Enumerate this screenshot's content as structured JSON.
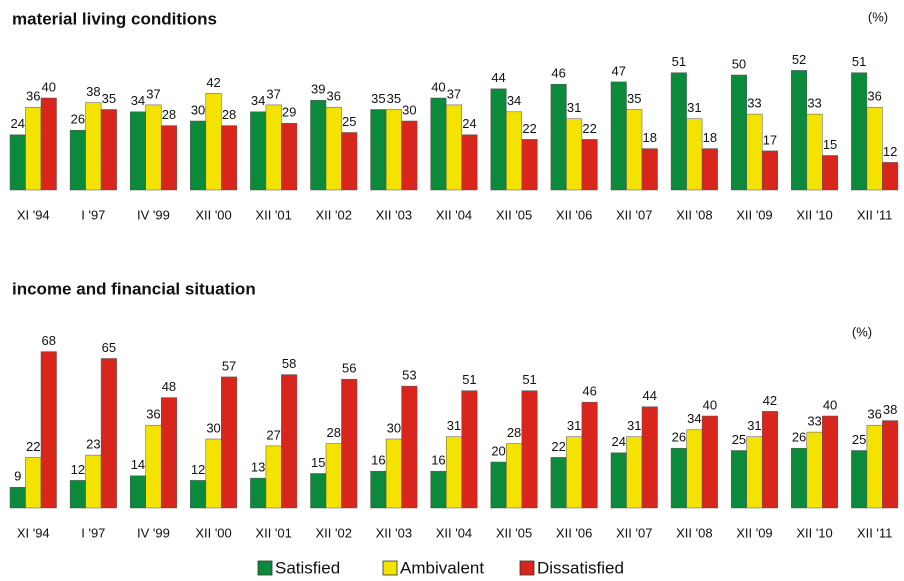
{
  "chart_data": [
    {
      "type": "bar",
      "title": "material living conditions",
      "unit": "(%)",
      "categories": [
        "XI '94",
        "I '97",
        "IV '99",
        "XII '00",
        "XII '01",
        "XII '02",
        "XII '03",
        "XII '04",
        "XII '05",
        "XII '06",
        "XII '07",
        "XII '08",
        "XII '09",
        "XII '10",
        "XII '11"
      ],
      "series": [
        {
          "name": "Satisfied",
          "color": "#0b8a3c",
          "values": [
            24,
            26,
            34,
            30,
            34,
            39,
            35,
            40,
            44,
            46,
            47,
            51,
            50,
            52,
            51
          ]
        },
        {
          "name": "Ambivalent",
          "color": "#f4e200",
          "values": [
            36,
            38,
            37,
            42,
            37,
            36,
            35,
            37,
            34,
            31,
            35,
            31,
            33,
            33,
            36
          ]
        },
        {
          "name": "Dissatisfied",
          "color": "#d8261d",
          "values": [
            40,
            35,
            28,
            28,
            29,
            25,
            30,
            24,
            22,
            22,
            18,
            18,
            17,
            15,
            12
          ]
        }
      ]
    },
    {
      "type": "bar",
      "title": "income and financial situation",
      "unit": "(%)",
      "categories": [
        "XI '94",
        "I '97",
        "IV '99",
        "XII '00",
        "XII '01",
        "XII '02",
        "XII '03",
        "XII '04",
        "XII '05",
        "XII '06",
        "XII '07",
        "XII '08",
        "XII '09",
        "XII '10",
        "XII '11"
      ],
      "series": [
        {
          "name": "Satisfied",
          "color": "#0b8a3c",
          "values": [
            9,
            12,
            14,
            12,
            13,
            15,
            16,
            16,
            20,
            22,
            24,
            26,
            25,
            26,
            25
          ]
        },
        {
          "name": "Ambivalent",
          "color": "#f4e200",
          "values": [
            22,
            23,
            36,
            30,
            27,
            28,
            30,
            31,
            28,
            31,
            31,
            34,
            31,
            33,
            36
          ]
        },
        {
          "name": "Dissatisfied",
          "color": "#d8261d",
          "values": [
            68,
            65,
            48,
            57,
            58,
            56,
            53,
            51,
            51,
            46,
            44,
            40,
            42,
            40,
            38
          ]
        }
      ]
    }
  ]
}
